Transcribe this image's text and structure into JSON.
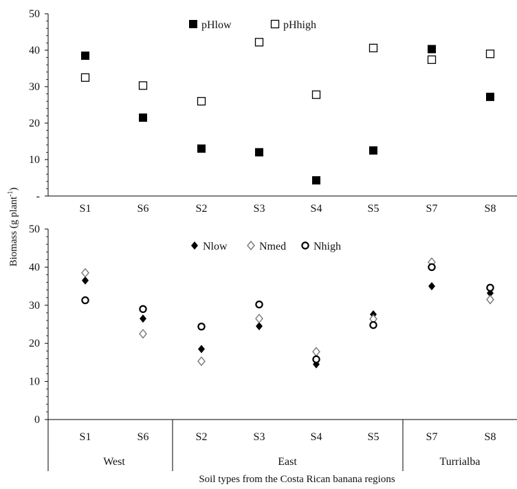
{
  "chart_data": [
    {
      "type": "scatter",
      "panel": "top",
      "categories": [
        "S1",
        "S6",
        "S2",
        "S3",
        "S4",
        "S5",
        "S7",
        "S8"
      ],
      "ylim": [
        0,
        50
      ],
      "yticks": [
        "-",
        "10",
        "20",
        "30",
        "40",
        "50"
      ],
      "legend_position": "top-center",
      "series": [
        {
          "name": "pHlow",
          "marker": "filled-square",
          "color": "#000000",
          "values": [
            38.5,
            21.5,
            13,
            12,
            4.3,
            12.5,
            40.3,
            27.2
          ]
        },
        {
          "name": "pHhigh",
          "marker": "open-square",
          "color": "#000000",
          "values": [
            32.5,
            30.3,
            26,
            42.2,
            27.8,
            40.6,
            37.4,
            39
          ]
        }
      ]
    },
    {
      "type": "scatter",
      "panel": "bottom",
      "categories": [
        "S1",
        "S6",
        "S2",
        "S3",
        "S4",
        "S5",
        "S7",
        "S8"
      ],
      "ylim": [
        0,
        50
      ],
      "yticks": [
        "0",
        "10",
        "20",
        "30",
        "40",
        "50"
      ],
      "legend_position": "top-center",
      "series": [
        {
          "name": "Nlow",
          "marker": "filled-diamond",
          "color": "#000000",
          "values": [
            36.5,
            26.5,
            18.5,
            24.5,
            14.5,
            27.6,
            35,
            33.2
          ]
        },
        {
          "name": "Nmed",
          "marker": "open-diamond",
          "color": "#777777",
          "values": [
            38.5,
            22.5,
            15.3,
            26.5,
            17.8,
            26.4,
            41.3,
            31.5
          ]
        },
        {
          "name": "Nhigh",
          "marker": "open-circle",
          "color": "#000000",
          "values": [
            31.3,
            29,
            24.4,
            30.2,
            15.8,
            24.8,
            40,
            34.6
          ]
        }
      ],
      "groups": [
        {
          "name": "West",
          "categories": [
            "S1",
            "S6"
          ]
        },
        {
          "name": "East",
          "categories": [
            "S2",
            "S3",
            "S4",
            "S5"
          ]
        },
        {
          "name": "Turrialba",
          "categories": [
            "S7",
            "S8"
          ]
        }
      ]
    }
  ],
  "ylabel": "Biomass  (g plant",
  "ylabel_sup": "-1",
  "ylabel_close": ")",
  "xlabel": "Soil types from the Costa Rican banana regions"
}
